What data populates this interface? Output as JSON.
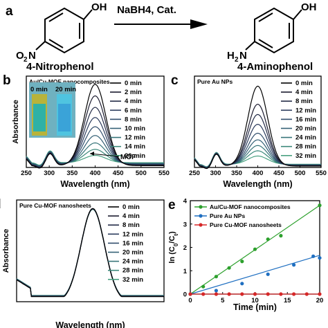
{
  "panel_a": {
    "letter": "a",
    "reactant_name": "4-Nitrophenol",
    "product_name": "4-Aminophenol",
    "reactant_oh": "OH",
    "reactant_no2_main": "O",
    "reactant_no2_sub": "2",
    "reactant_no2_n": "N",
    "product_oh": "OH",
    "product_nh2_h": "H",
    "product_nh2_sub": "2",
    "product_nh2_n": "N",
    "reagent": "NaBH4, Cat."
  },
  "chart_data": [
    {
      "panel": "b",
      "type": "line",
      "title": "Au/Cu-MOF nanocomposites",
      "xlabel": "Wavelength (nm)",
      "ylabel": "Absorbance",
      "xlim": [
        250,
        550
      ],
      "xticks": [
        250,
        300,
        350,
        400,
        450,
        500,
        550
      ],
      "legend": [
        "0 min",
        "2 min",
        "4 min",
        "6 min",
        "8 min",
        "10 min",
        "12 min",
        "14 min",
        "20 min"
      ],
      "legend_placement": "right",
      "peak_heights": [
        1.78,
        1.52,
        1.26,
        1.03,
        0.82,
        0.62,
        0.45,
        0.3,
        0.16
      ],
      "inset_labels": [
        "0 min",
        "20 min"
      ],
      "annotation": "MOF"
    },
    {
      "panel": "c",
      "type": "line",
      "title": "Pure Au NPs",
      "xlabel": "Wavelength (nm)",
      "ylabel": "",
      "xlim": [
        250,
        550
      ],
      "xticks": [
        250,
        300,
        350,
        400,
        450,
        500,
        550
      ],
      "legend": [
        "0 min",
        "4 min",
        "8 min",
        "12 min",
        "16 min",
        "20 min",
        "24 min",
        "28 min",
        "32 min"
      ],
      "legend_placement": "right",
      "peak_heights": [
        1.75,
        1.35,
        1.12,
        0.9,
        0.7,
        0.55,
        0.42,
        0.3,
        0.18
      ]
    },
    {
      "panel": "d",
      "type": "line",
      "title": "Pure Cu-MOF nanosheets",
      "xlabel": "Wavelength (nm)",
      "ylabel": "Absorbance",
      "xlim": [
        250,
        550
      ],
      "xticks": [],
      "legend": [
        "0 min",
        "4 min",
        "8 min",
        "12 min",
        "16 min",
        "20 min",
        "24 min",
        "28 min",
        "32 min"
      ],
      "legend_placement": "right",
      "peak_heights": [
        1.83,
        1.83,
        1.82,
        1.82,
        1.81,
        1.81,
        1.8,
        1.8,
        1.79
      ]
    },
    {
      "panel": "e",
      "type": "scatter",
      "title": "",
      "xlabel": "Time (min)",
      "ylabel": "ln (C0/Ct)",
      "xlim": [
        0,
        20
      ],
      "ylim": [
        0,
        4
      ],
      "xticks": [
        0,
        5,
        10,
        15,
        20
      ],
      "yticks": [
        0,
        1,
        2,
        3,
        4
      ],
      "legend_placement": "top-left",
      "series": [
        {
          "name": "Au/Cu-MOF nanocomposites",
          "color": "#2ca02c",
          "x": [
            0,
            2,
            4,
            6,
            8,
            10,
            12,
            14,
            20
          ],
          "y": [
            0,
            0.32,
            0.75,
            1.12,
            1.4,
            1.92,
            2.35,
            2.5,
            3.8
          ],
          "fit_slope": 0.19
        },
        {
          "name": "Pure Au NPs",
          "color": "#1f6fc1",
          "x": [
            0,
            4,
            8,
            12,
            16,
            19,
            20
          ],
          "y": [
            0,
            0.15,
            0.45,
            0.85,
            1.25,
            1.62,
            1.55
          ],
          "fit_slope": 0.083
        },
        {
          "name": "Pure Cu-MOF nanosheets",
          "color": "#d62728",
          "x": [
            0,
            2,
            4,
            6,
            8,
            10,
            12,
            14,
            16,
            18,
            20
          ],
          "y": [
            0,
            0,
            0,
            0,
            0,
            0,
            0,
            0,
            0,
            0,
            0
          ],
          "fit_slope": 0
        }
      ]
    }
  ]
}
